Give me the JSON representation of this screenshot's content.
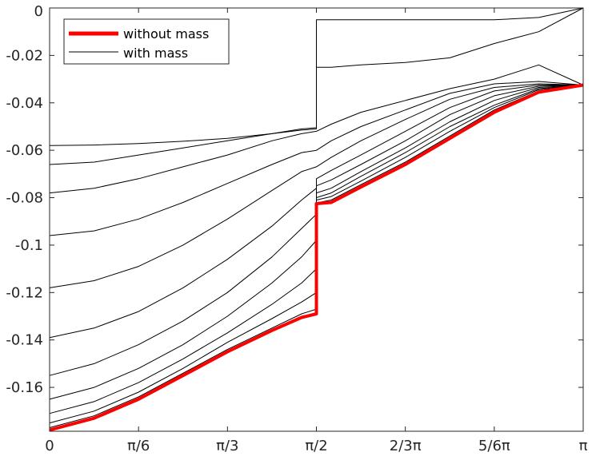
{
  "chart_data": {
    "type": "line",
    "title": "",
    "xlabel": "",
    "ylabel": "",
    "xlim": [
      0,
      3.14159265
    ],
    "ylim": [
      -0.1785,
      0
    ],
    "grid": false,
    "legend_position": "top-left",
    "x_ticks": [
      {
        "value": 0,
        "label": "0"
      },
      {
        "value": 0.5236,
        "label": "π/6"
      },
      {
        "value": 1.0472,
        "label": "π/3"
      },
      {
        "value": 1.5708,
        "label": "π/2"
      },
      {
        "value": 2.0944,
        "label": "2/3π"
      },
      {
        "value": 2.618,
        "label": "5/6π"
      },
      {
        "value": 3.1416,
        "label": "π"
      }
    ],
    "y_ticks": [
      {
        "value": 0,
        "label": "0"
      },
      {
        "value": -0.02,
        "label": "-0.02"
      },
      {
        "value": -0.04,
        "label": "-0.04"
      },
      {
        "value": -0.06,
        "label": "-0.06"
      },
      {
        "value": -0.08,
        "label": "-0.08"
      },
      {
        "value": -0.1,
        "label": "-0.1"
      },
      {
        "value": -0.12,
        "label": "-0.12"
      },
      {
        "value": -0.14,
        "label": "-0.14"
      },
      {
        "value": -0.16,
        "label": "-0.16"
      }
    ],
    "legend": [
      {
        "label": "without mass",
        "color": "#ff0000"
      },
      {
        "label": "with mass",
        "color": "#000000"
      }
    ],
    "series": [
      {
        "name": "without mass",
        "color": "#ff0000",
        "x": [
          0,
          0.2618,
          0.5236,
          0.7854,
          1.0472,
          1.309,
          1.4835,
          1.5708,
          1.5708,
          1.6581,
          1.8326,
          2.0944,
          2.3562,
          2.618,
          2.8798,
          3.1416
        ],
        "y": [
          -0.178,
          -0.173,
          -0.165,
          -0.155,
          -0.145,
          -0.136,
          -0.1305,
          -0.129,
          -0.0825,
          -0.082,
          -0.0755,
          -0.066,
          -0.055,
          -0.044,
          -0.0355,
          -0.0325
        ]
      },
      {
        "color": "#000000",
        "x": [
          0,
          0.2618,
          0.5236,
          0.7854,
          1.0472,
          1.309,
          1.4835,
          1.5708,
          1.5708,
          1.6581,
          1.8326,
          2.0944,
          2.3562,
          2.618,
          2.8798,
          3.1416
        ],
        "y": [
          -0.177,
          -0.172,
          -0.164,
          -0.154,
          -0.144,
          -0.135,
          -0.129,
          -0.127,
          -0.0822,
          -0.081,
          -0.0745,
          -0.065,
          -0.054,
          -0.043,
          -0.035,
          -0.0325
        ]
      },
      {
        "color": "#000000",
        "x": [
          0,
          0.2618,
          0.5236,
          0.7854,
          1.0472,
          1.309,
          1.4835,
          1.5708,
          1.5708,
          1.6581,
          1.8326,
          2.0944,
          2.3562,
          2.618,
          2.8798,
          3.1416
        ],
        "y": [
          -0.175,
          -0.17,
          -0.162,
          -0.152,
          -0.141,
          -0.131,
          -0.124,
          -0.12,
          -0.081,
          -0.0795,
          -0.073,
          -0.063,
          -0.052,
          -0.042,
          -0.0345,
          -0.0325
        ]
      },
      {
        "color": "#000000",
        "x": [
          0,
          0.2618,
          0.5236,
          0.7854,
          1.0472,
          1.309,
          1.4835,
          1.5708,
          1.5708,
          1.6581,
          1.8326,
          2.0944,
          2.3562,
          2.618,
          2.8798,
          3.1416
        ],
        "y": [
          -0.171,
          -0.166,
          -0.158,
          -0.148,
          -0.137,
          -0.125,
          -0.116,
          -0.11,
          -0.08,
          -0.078,
          -0.071,
          -0.061,
          -0.05,
          -0.041,
          -0.034,
          -0.0325
        ]
      },
      {
        "color": "#000000",
        "x": [
          0,
          0.2618,
          0.5236,
          0.7854,
          1.0472,
          1.309,
          1.4835,
          1.5708,
          1.5708,
          1.6581,
          1.8326,
          2.0944,
          2.3562,
          2.618,
          2.8798,
          3.1416
        ],
        "y": [
          -0.165,
          -0.16,
          -0.152,
          -0.142,
          -0.13,
          -0.116,
          -0.105,
          -0.098,
          -0.078,
          -0.076,
          -0.069,
          -0.059,
          -0.048,
          -0.039,
          -0.0335,
          -0.0325
        ]
      },
      {
        "color": "#000000",
        "x": [
          0,
          0.2618,
          0.5236,
          0.7854,
          1.0472,
          1.309,
          1.4835,
          1.5708,
          1.5708,
          1.6581,
          1.8326,
          2.0944,
          2.3562,
          2.618,
          2.8798,
          3.1416
        ],
        "y": [
          -0.155,
          -0.15,
          -0.142,
          -0.132,
          -0.12,
          -0.105,
          -0.093,
          -0.087,
          -0.075,
          -0.0725,
          -0.066,
          -0.056,
          -0.045,
          -0.037,
          -0.033,
          -0.0325
        ]
      },
      {
        "color": "#000000",
        "x": [
          0,
          0.2618,
          0.5236,
          0.7854,
          1.0472,
          1.309,
          1.4835,
          1.5708,
          1.5708,
          1.6581,
          1.8326,
          2.0944,
          2.3562,
          2.618,
          2.8798,
          3.1416
        ],
        "y": [
          -0.139,
          -0.135,
          -0.128,
          -0.118,
          -0.106,
          -0.092,
          -0.081,
          -0.076,
          -0.072,
          -0.0685,
          -0.062,
          -0.052,
          -0.042,
          -0.035,
          -0.0325,
          -0.0325
        ]
      },
      {
        "color": "#000000",
        "x": [
          0,
          0.2618,
          0.5236,
          0.7854,
          1.0472,
          1.309,
          1.4835,
          1.5708,
          1.5708,
          1.6581,
          1.8326,
          2.0944,
          2.3562,
          2.618,
          2.8798,
          3.1416
        ],
        "y": [
          -0.118,
          -0.115,
          -0.109,
          -0.1,
          -0.089,
          -0.077,
          -0.069,
          -0.067,
          -0.067,
          -0.063,
          -0.056,
          -0.047,
          -0.0385,
          -0.0335,
          -0.032,
          -0.0325
        ]
      },
      {
        "color": "#000000",
        "x": [
          0,
          0.2618,
          0.5236,
          0.7854,
          1.0472,
          1.309,
          1.4835,
          1.5708,
          1.5708,
          1.6581,
          1.8326,
          2.0944,
          2.3562,
          2.618,
          2.8798,
          3.1416
        ],
        "y": [
          -0.096,
          -0.094,
          -0.089,
          -0.082,
          -0.074,
          -0.066,
          -0.061,
          -0.06,
          -0.06,
          -0.056,
          -0.05,
          -0.043,
          -0.036,
          -0.032,
          -0.031,
          -0.0325
        ]
      },
      {
        "color": "#000000",
        "x": [
          0,
          0.2618,
          0.5236,
          0.7854,
          1.0472,
          1.309,
          1.4835,
          1.5708,
          1.5708,
          1.6581,
          1.8326,
          2.0944,
          2.3562,
          2.618,
          2.8798,
          3.1416
        ],
        "y": [
          -0.078,
          -0.076,
          -0.072,
          -0.067,
          -0.062,
          -0.056,
          -0.053,
          -0.052,
          -0.052,
          -0.049,
          -0.044,
          -0.039,
          -0.034,
          -0.03,
          -0.024,
          -0.0325
        ]
      },
      {
        "color": "#000000",
        "x": [
          0,
          0.2618,
          0.5236,
          0.7854,
          1.0472,
          1.309,
          1.4835,
          1.5708,
          1.5708,
          1.6581,
          1.8326,
          2.0944,
          2.3562,
          2.618,
          2.8798,
          3.1416
        ],
        "y": [
          -0.066,
          -0.065,
          -0.062,
          -0.059,
          -0.056,
          -0.053,
          -0.0515,
          -0.051,
          -0.025,
          -0.025,
          -0.024,
          -0.023,
          -0.021,
          -0.015,
          -0.01,
          0
        ]
      },
      {
        "color": "#000000",
        "x": [
          0,
          0.2618,
          0.5236,
          0.7854,
          1.0472,
          1.309,
          1.4835,
          1.5708,
          1.5708,
          1.6581,
          1.8326,
          2.0944,
          2.3562,
          2.618,
          2.8798,
          3.1416
        ],
        "y": [
          -0.058,
          -0.0578,
          -0.0572,
          -0.0562,
          -0.055,
          -0.053,
          -0.051,
          -0.0505,
          -0.005,
          -0.005,
          -0.005,
          -0.005,
          -0.005,
          -0.005,
          -0.004,
          0
        ]
      }
    ]
  }
}
